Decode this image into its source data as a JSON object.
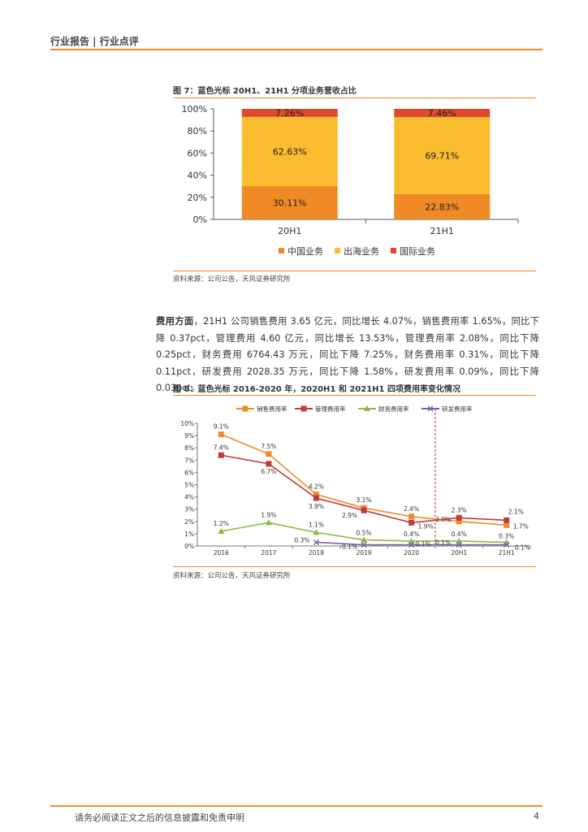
{
  "header": {
    "title": "行业报告 | 行业点评"
  },
  "figures": [
    {
      "title": "图 7：蓝色光标 20H1、21H1 分项业务营收占比",
      "source": "资料来源：公司公告，天风证券研究所"
    },
    {
      "title": "图 8：蓝色光标 2016-2020 年，2020H1 和 2021H1 四项费用率变化情况",
      "source": "资料来源：公司公告，天风证券研究所"
    }
  ],
  "paragraph": {
    "lead": "费用方面",
    "text": "，21H1 公司销售费用 3.65 亿元，同比增长 4.07%，销售费用率 1.65%，同比下降 0.37pct，管理费用 4.60 亿元，同比增长 13.53%，管理费用率 2.08%，同比下降 0.25pct，财务费用 6764.43 万元，同比下降 7.25%，财务费用率 0.31%，同比下降 0.11pct，研发费用 2028.35 万元，同比下降 1.58%，研发费用率 0.09%，同比下降 0.03pct。"
  },
  "footer": {
    "disclaimer": "请务必阅读正文之后的信息披露和免责申明",
    "page": "4"
  },
  "chart_data": [
    {
      "type": "bar",
      "stacked": true,
      "categories": [
        "20H1",
        "21H1"
      ],
      "series": [
        {
          "name": "中国业务",
          "values": [
            30.11,
            22.83
          ],
          "labels": [
            "30.11%",
            "22.83%"
          ],
          "color": "#f08a24"
        },
        {
          "name": "出海业务",
          "values": [
            62.63,
            69.71
          ],
          "labels": [
            "62.63%",
            "69.71%"
          ],
          "color": "#fbbc2f"
        },
        {
          "name": "国际业务",
          "values": [
            7.26,
            7.46
          ],
          "labels": [
            "7.26%",
            "7.46%"
          ],
          "color": "#e04a2a"
        }
      ],
      "yticks": [
        "0%",
        "20%",
        "40%",
        "60%",
        "80%",
        "100%"
      ],
      "ylim": [
        0,
        100
      ],
      "legend": "bottom"
    },
    {
      "type": "line",
      "categories": [
        "2016",
        "2017",
        "2018",
        "2019",
        "2020",
        "20H1",
        "21H1"
      ],
      "yticks": [
        "0%",
        "1%",
        "2%",
        "3%",
        "4%",
        "5%",
        "6%",
        "7%",
        "8%",
        "9%",
        "10%"
      ],
      "ylim": [
        0,
        10
      ],
      "legend": "top",
      "divider_after": "2020",
      "series": [
        {
          "name": "销售费用率",
          "values": [
            9.1,
            7.5,
            4.2,
            3.1,
            2.4,
            2.0,
            1.7
          ],
          "labels": [
            "9.1%",
            "7.5%",
            "4.2%",
            "3.1%",
            "2.4%",
            "2.0%",
            "1.7%"
          ],
          "color": "#f08a24",
          "marker": "square"
        },
        {
          "name": "管理费用率",
          "values": [
            7.4,
            6.7,
            3.9,
            2.9,
            1.9,
            2.3,
            2.1
          ],
          "labels": [
            "7.4%",
            "6.7%",
            "3.9%",
            "2.9%",
            "1.9%",
            "2.3%",
            "2.1%"
          ],
          "color": "#c0393b",
          "marker": "square"
        },
        {
          "name": "财务费用率",
          "values": [
            1.2,
            1.9,
            1.1,
            0.5,
            0.4,
            0.4,
            0.3
          ],
          "labels": [
            "1.2%",
            "1.9%",
            "1.1%",
            "0.5%",
            "0.4%",
            "0.4%",
            "0.3%"
          ],
          "color": "#8dba43",
          "marker": "triangle"
        },
        {
          "name": "研发费用率",
          "values": [
            null,
            null,
            0.3,
            0.1,
            0.1,
            0.1,
            0.1
          ],
          "labels": [
            "",
            "",
            "0.3%",
            "0.1%",
            "0.1%",
            "0.1%",
            "0.1%"
          ],
          "color": "#7a5ea8",
          "marker": "x"
        }
      ]
    }
  ]
}
